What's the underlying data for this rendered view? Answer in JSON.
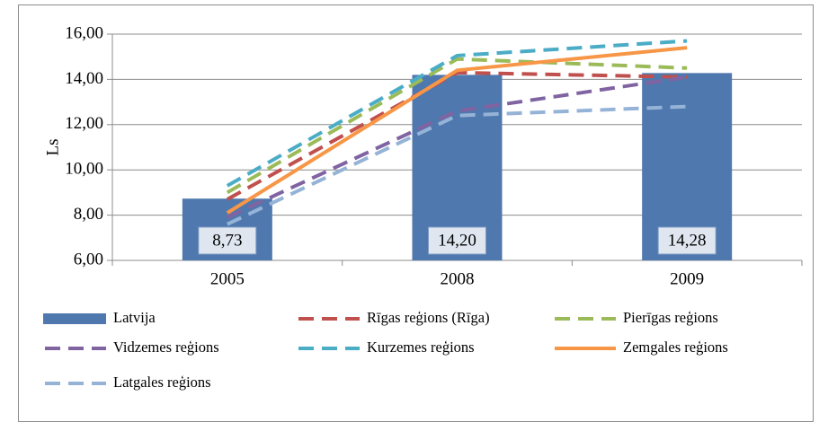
{
  "chart_data": {
    "type": "bar",
    "y_label": "Ls",
    "categories": [
      "2005",
      "2008",
      "2009"
    ],
    "series": [
      {
        "name": "Latvija",
        "type": "bar",
        "color": "#4f78ae",
        "values": [
          8.73,
          14.2,
          14.28
        ],
        "value_labels": [
          "8,73",
          "14,20",
          "14,28"
        ]
      },
      {
        "name": "Rīgas reģions (Rīga)",
        "type": "line",
        "style": "dashed",
        "color": "#c0504d",
        "values": [
          8.7,
          14.3,
          14.1
        ]
      },
      {
        "name": "Pierīgas reģions",
        "type": "line",
        "style": "dashed",
        "color": "#9bbb59",
        "values": [
          9.0,
          14.9,
          14.5
        ]
      },
      {
        "name": "Vidzemes reģions",
        "type": "line",
        "style": "dashed",
        "color": "#8064a2",
        "values": [
          7.9,
          12.6,
          14.1
        ]
      },
      {
        "name": "Kurzemes reģions",
        "type": "line",
        "style": "dashed",
        "color": "#4bacc6",
        "values": [
          9.3,
          15.05,
          15.7
        ]
      },
      {
        "name": "Zemgales reģions",
        "type": "line",
        "style": "solid",
        "color": "#f79646",
        "values": [
          8.1,
          14.4,
          15.4
        ]
      },
      {
        "name": "Latgales reģions",
        "type": "line",
        "style": "dashed",
        "color": "#95b3d7",
        "values": [
          7.6,
          12.4,
          12.8
        ]
      }
    ],
    "ylim": [
      6,
      16
    ],
    "yticks": [
      {
        "value": 6,
        "label": "6,00"
      },
      {
        "value": 8,
        "label": "8,00"
      },
      {
        "value": 10,
        "label": "10,00"
      },
      {
        "value": 12,
        "label": "12,00"
      },
      {
        "value": 14,
        "label": "14,00"
      },
      {
        "value": 16,
        "label": "16,00"
      }
    ],
    "grid": true
  }
}
